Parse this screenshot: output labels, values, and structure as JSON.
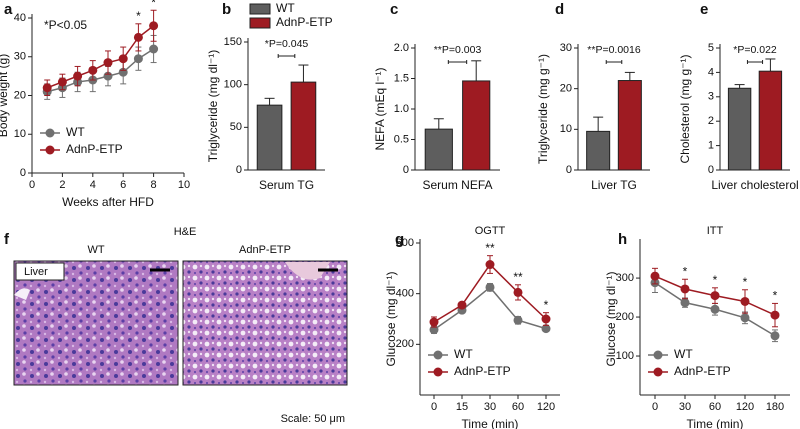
{
  "chart_data": [
    {
      "type": "line",
      "panel_label": "a",
      "ylabel": "Body weight (g)",
      "xlabel": "Weeks after HFD",
      "annotation": "*P<0.05",
      "x": [
        1,
        2,
        3,
        4,
        5,
        6,
        7,
        8
      ],
      "xlim": [
        0,
        10
      ],
      "xticks": [
        0,
        2,
        4,
        6,
        8,
        10
      ],
      "ylim": [
        0,
        40
      ],
      "yticks": [
        0,
        10,
        20,
        30,
        40
      ],
      "series": [
        {
          "name": "WT",
          "color": "#707070",
          "values": [
            21,
            22,
            23.5,
            24,
            25,
            26,
            29.5,
            32
          ],
          "errors": [
            2,
            2.5,
            2.5,
            3,
            2.5,
            3,
            3,
            3.5
          ]
        },
        {
          "name": "AdnP-ETP",
          "color": "#9e1b22",
          "values": [
            22,
            23.5,
            25,
            26.5,
            28.5,
            29.5,
            35,
            38
          ],
          "errors": [
            2,
            2,
            2.5,
            2.5,
            3,
            3,
            3.5,
            4
          ]
        }
      ],
      "significance": [
        null,
        null,
        null,
        null,
        null,
        null,
        "*",
        "*"
      ],
      "legend": "lower left"
    },
    {
      "type": "bar",
      "panel_label": "b",
      "ylabel": "Triglyceride (mg dl⁻¹)",
      "xlabel": "Serum TG",
      "annotation": "*P=0.045",
      "ylim": [
        0,
        150
      ],
      "yticks": [
        0,
        50,
        100,
        150
      ],
      "series": [
        {
          "name": "WT",
          "color": "#5e5e5e",
          "values": [
            76
          ],
          "errors": [
            8
          ]
        },
        {
          "name": "AdnP-ETP",
          "color": "#9e1b22",
          "values": [
            103
          ],
          "errors": [
            20
          ]
        }
      ],
      "legend": "top"
    },
    {
      "type": "bar",
      "panel_label": "c",
      "ylabel": "NEFA (mEq l⁻¹)",
      "xlabel": "Serum NEFA",
      "annotation": "**P=0.003",
      "ylim": [
        0,
        2
      ],
      "yticks": [
        0,
        0.5,
        {
          "value": 1,
          "label": "1.0"
        },
        1.5,
        {
          "value": 2,
          "label": "2.0"
        }
      ],
      "values": [
        0.67,
        1.46
      ],
      "errors": [
        0.17,
        0.33
      ],
      "colors": [
        "#5e5e5e",
        "#9e1b22"
      ]
    },
    {
      "type": "bar",
      "panel_label": "d",
      "ylabel": "Triglyceride (mg g⁻¹)",
      "xlabel": "Liver TG",
      "annotation": "**P=0.0016",
      "ylim": [
        0,
        30
      ],
      "yticks": [
        0,
        10,
        20,
        30
      ],
      "values": [
        9.5,
        22
      ],
      "errors": [
        3.5,
        2
      ],
      "colors": [
        "#5e5e5e",
        "#9e1b22"
      ]
    },
    {
      "type": "bar",
      "panel_label": "e",
      "ylabel": "Cholesterol (mg g⁻¹)",
      "xlabel": "Liver cholesterol",
      "annotation": "*P=0.022",
      "ylim": [
        0,
        5
      ],
      "yticks": [
        0,
        1,
        2,
        3,
        4,
        5
      ],
      "values": [
        3.35,
        4.05
      ],
      "errors": [
        0.15,
        0.5
      ],
      "colors": [
        "#5e5e5e",
        "#9e1b22"
      ]
    },
    {
      "type": "line",
      "panel_label": "g",
      "title": "OGTT",
      "ylabel": "Glucose (mg dl⁻¹)",
      "xlabel": "Time (min)",
      "categories": [
        "0",
        "15",
        "30",
        "60",
        "120"
      ],
      "ylim": [
        0,
        600
      ],
      "yticks": [
        200,
        400,
        600
      ],
      "series": [
        {
          "name": "WT",
          "color": "#707070",
          "values": [
            258,
            335,
            425,
            295,
            262
          ],
          "errors": [
            15,
            10,
            15,
            15,
            10
          ]
        },
        {
          "name": "AdnP-ETP",
          "color": "#9e1b22",
          "values": [
            288,
            355,
            515,
            405,
            300
          ],
          "errors": [
            20,
            10,
            35,
            30,
            25
          ]
        }
      ],
      "significance": [
        null,
        null,
        "**",
        "**",
        "*"
      ],
      "legend": "lower left"
    },
    {
      "type": "line",
      "panel_label": "h",
      "title": "ITT",
      "ylabel": "Glucose (mg dl⁻¹)",
      "xlabel": "Time (min)",
      "categories": [
        "0",
        "30",
        "60",
        "120",
        "180"
      ],
      "ylim": [
        0,
        390
      ],
      "yticks": [
        100,
        200,
        300
      ],
      "series": [
        {
          "name": "WT",
          "color": "#707070",
          "values": [
            288,
            237,
            220,
            198,
            152
          ],
          "errors": [
            25,
            12,
            15,
            15,
            15
          ]
        },
        {
          "name": "AdnP-ETP",
          "color": "#9e1b22",
          "values": [
            305,
            272,
            255,
            240,
            205
          ],
          "errors": [
            20,
            25,
            20,
            30,
            30
          ]
        }
      ],
      "significance": [
        null,
        "*",
        "*",
        "*",
        "*"
      ],
      "legend": "lower left"
    }
  ],
  "histology": {
    "panel_label": "f",
    "title": "H&E",
    "images": [
      {
        "label": "WT"
      },
      {
        "label": "AdnP-ETP"
      }
    ],
    "tissue_label": "Liver",
    "scale_label": "Scale: 50 μm"
  }
}
